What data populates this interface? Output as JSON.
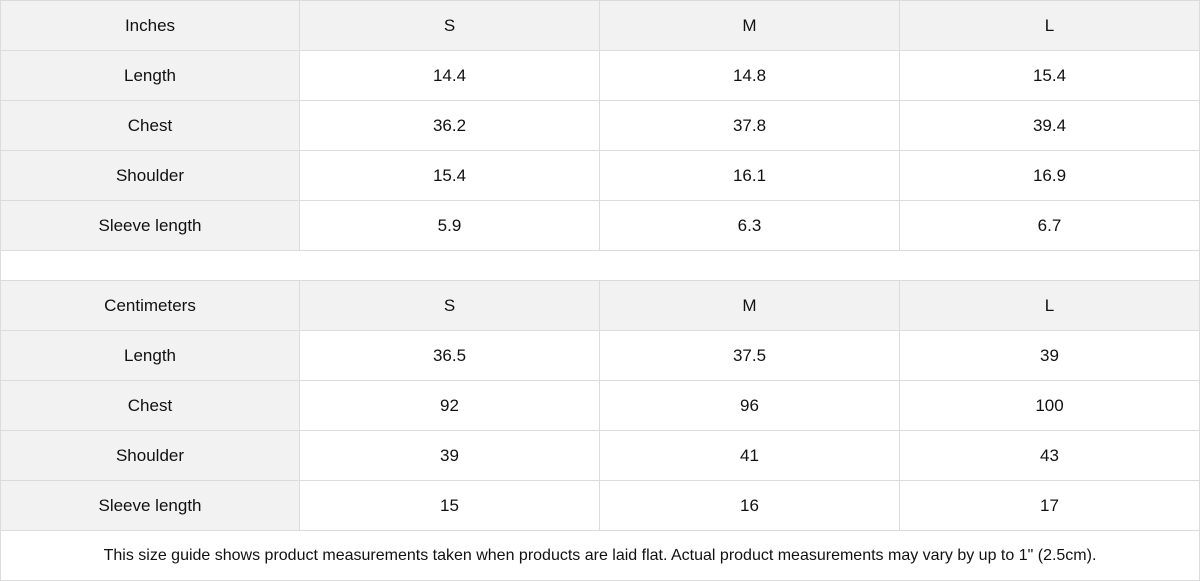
{
  "tables": [
    {
      "unit": "Inches",
      "sizes": [
        "S",
        "M",
        "L"
      ],
      "rows": [
        {
          "label": "Length",
          "values": [
            "14.4",
            "14.8",
            "15.4"
          ]
        },
        {
          "label": "Chest",
          "values": [
            "36.2",
            "37.8",
            "39.4"
          ]
        },
        {
          "label": "Shoulder",
          "values": [
            "15.4",
            "16.1",
            "16.9"
          ]
        },
        {
          "label": "Sleeve length",
          "values": [
            "5.9",
            "6.3",
            "6.7"
          ]
        }
      ]
    },
    {
      "unit": "Centimeters",
      "sizes": [
        "S",
        "M",
        "L"
      ],
      "rows": [
        {
          "label": "Length",
          "values": [
            "36.5",
            "37.5",
            "39"
          ]
        },
        {
          "label": "Chest",
          "values": [
            "92",
            "96",
            "100"
          ]
        },
        {
          "label": "Shoulder",
          "values": [
            "39",
            "41",
            "43"
          ]
        },
        {
          "label": "Sleeve length",
          "values": [
            "15",
            "16",
            "17"
          ]
        }
      ]
    }
  ],
  "note": "This size guide shows product measurements taken when products are laid flat.  Actual product measurements may vary by up to 1\" (2.5cm).",
  "colors": {
    "header_bg": "#f2f2f2",
    "border": "#dcdcdc"
  }
}
